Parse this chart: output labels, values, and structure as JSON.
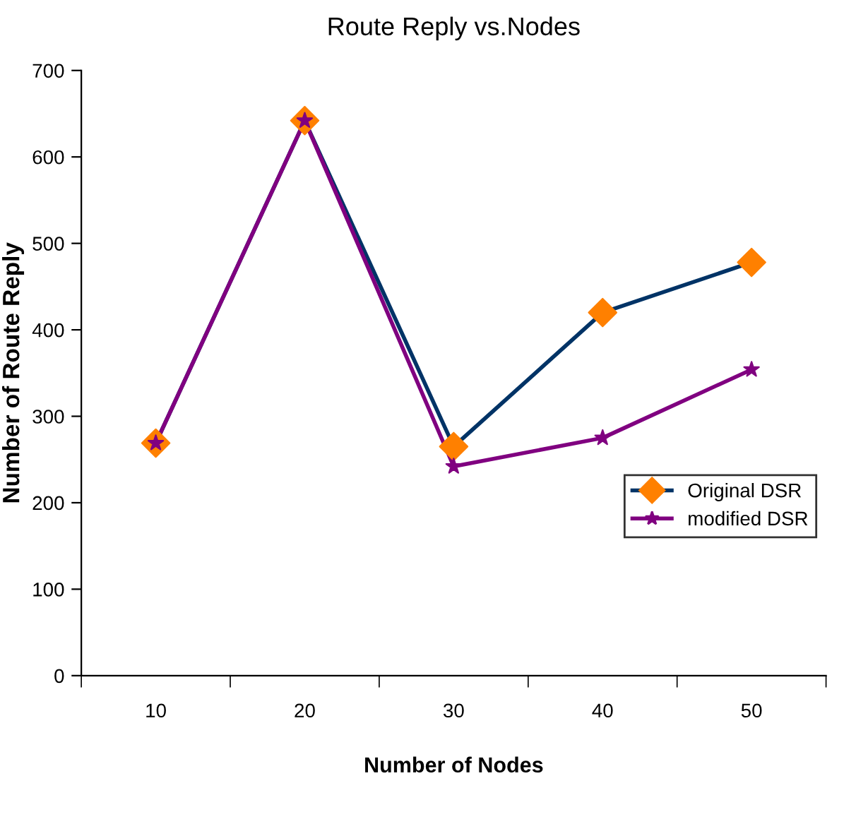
{
  "chart_data": {
    "type": "line",
    "title": "Route Reply vs.Nodes",
    "xlabel": "Number of Nodes",
    "ylabel": "Number of Route Reply",
    "categories": [
      "10",
      "20",
      "30",
      "40",
      "50"
    ],
    "series": [
      {
        "name": "Original DSR",
        "color": "#003366",
        "colors": [
          "#ff8000",
          "#ff8000",
          "#ff8000",
          "#ff8000",
          "#ff8000"
        ],
        "marker": "diamond",
        "values": [
          269,
          642,
          265,
          420,
          478
        ]
      },
      {
        "name": "modified DSR",
        "color": "#800080",
        "marker": "star",
        "values": [
          269,
          642,
          242,
          275,
          354
        ]
      }
    ],
    "ylim": [
      0,
      700
    ],
    "yticks": [
      0,
      100,
      200,
      300,
      400,
      500,
      600,
      700
    ],
    "grid": false,
    "legend": "right",
    "line_style": "solid"
  }
}
